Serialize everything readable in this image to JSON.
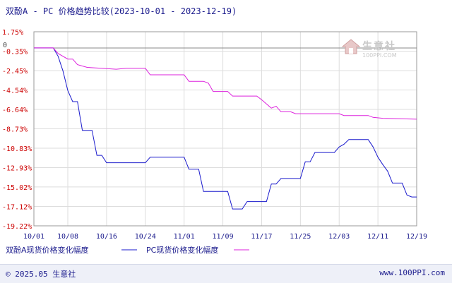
{
  "title": "双酚A - PC 价格趋势比较(2023-10-01 - 2023-12-19)",
  "watermark": {
    "name": "生意社",
    "url": "100PPI.COM"
  },
  "footer": {
    "copyright": "© 2025.05 生意社",
    "site": "www.100PPI.com"
  },
  "colors": {
    "bpa": "#1a1acc",
    "pc": "#dd22dd",
    "axis": "#999999",
    "grid": "#dddddd",
    "ytick": "#cc0000"
  },
  "chart_data": {
    "type": "line",
    "title": "双酚A - PC 价格趋势比较(2023-10-01 - 2023-12-19)",
    "y_unit": "%",
    "ylim": [
      -19.22,
      1.75
    ],
    "y_ticks": [
      "1.75%",
      "-0.35%",
      "-2.45%",
      "-4.54%",
      "-6.64%",
      "-8.73%",
      "-10.83%",
      "-12.93%",
      "-15.02%",
      "-17.12%",
      "-19.22%"
    ],
    "y_tick_values": [
      1.75,
      -0.35,
      -2.45,
      -4.54,
      -6.64,
      -8.73,
      -10.83,
      -12.93,
      -15.02,
      -17.12,
      -19.22
    ],
    "zero_label": "0",
    "x_range": [
      "2023-10-01",
      "2023-12-19"
    ],
    "x_ticks": [
      "10/01",
      "10/08",
      "10/16",
      "10/24",
      "11/01",
      "11/09",
      "11/17",
      "11/25",
      "12/03",
      "12/11",
      "12/19"
    ],
    "x_tick_dates": [
      "2023-10-01",
      "2023-10-08",
      "2023-10-16",
      "2023-10-24",
      "2023-11-01",
      "2023-11-09",
      "2023-11-17",
      "2023-11-25",
      "2023-12-03",
      "2023-12-11",
      "2023-12-19"
    ],
    "grid": true,
    "legend_position": "bottom-left",
    "series": [
      {
        "name": "双酚A现货价格变化幅度",
        "color": "#1a1acc",
        "points": [
          [
            "2023-10-01",
            0.0
          ],
          [
            "2023-10-05",
            0.0
          ],
          [
            "2023-10-06",
            -0.9
          ],
          [
            "2023-10-07",
            -2.5
          ],
          [
            "2023-10-08",
            -4.6
          ],
          [
            "2023-10-09",
            -5.8
          ],
          [
            "2023-10-10",
            -5.8
          ],
          [
            "2023-10-11",
            -8.9
          ],
          [
            "2023-10-12",
            -8.9
          ],
          [
            "2023-10-13",
            -8.9
          ],
          [
            "2023-10-14",
            -11.6
          ],
          [
            "2023-10-15",
            -11.6
          ],
          [
            "2023-10-16",
            -12.4
          ],
          [
            "2023-10-23",
            -12.4
          ],
          [
            "2023-10-24",
            -12.4
          ],
          [
            "2023-10-25",
            -11.8
          ],
          [
            "2023-11-01",
            -11.8
          ],
          [
            "2023-11-02",
            -13.1
          ],
          [
            "2023-11-04",
            -13.1
          ],
          [
            "2023-11-05",
            -15.5
          ],
          [
            "2023-11-09",
            -15.5
          ],
          [
            "2023-11-10",
            -15.5
          ],
          [
            "2023-11-11",
            -17.4
          ],
          [
            "2023-11-13",
            -17.4
          ],
          [
            "2023-11-14",
            -16.6
          ],
          [
            "2023-11-17",
            -16.6
          ],
          [
            "2023-11-18",
            -16.6
          ],
          [
            "2023-11-19",
            -14.7
          ],
          [
            "2023-11-20",
            -14.7
          ],
          [
            "2023-11-21",
            -14.1
          ],
          [
            "2023-11-24",
            -14.1
          ],
          [
            "2023-11-25",
            -14.1
          ],
          [
            "2023-11-26",
            -12.3
          ],
          [
            "2023-11-27",
            -12.3
          ],
          [
            "2023-11-28",
            -11.3
          ],
          [
            "2023-12-02",
            -11.3
          ],
          [
            "2023-12-03",
            -10.7
          ],
          [
            "2023-12-04",
            -10.4
          ],
          [
            "2023-12-05",
            -9.9
          ],
          [
            "2023-12-09",
            -9.9
          ],
          [
            "2023-12-10",
            -10.7
          ],
          [
            "2023-12-11",
            -11.8
          ],
          [
            "2023-12-12",
            -12.6
          ],
          [
            "2023-12-13",
            -13.3
          ],
          [
            "2023-12-14",
            -14.6
          ],
          [
            "2023-12-16",
            -14.6
          ],
          [
            "2023-12-17",
            -15.9
          ],
          [
            "2023-12-18",
            -16.1
          ],
          [
            "2023-12-19",
            -16.1
          ]
        ]
      },
      {
        "name": "PC现货价格变化幅度",
        "color": "#dd22dd",
        "points": [
          [
            "2023-10-01",
            0.0
          ],
          [
            "2023-10-05",
            0.0
          ],
          [
            "2023-10-06",
            -0.6
          ],
          [
            "2023-10-08",
            -1.2
          ],
          [
            "2023-10-09",
            -1.2
          ],
          [
            "2023-10-10",
            -1.8
          ],
          [
            "2023-10-12",
            -2.1
          ],
          [
            "2023-10-15",
            -2.2
          ],
          [
            "2023-10-18",
            -2.3
          ],
          [
            "2023-10-20",
            -2.2
          ],
          [
            "2023-10-24",
            -2.2
          ],
          [
            "2023-10-25",
            -2.9
          ],
          [
            "2023-10-31",
            -2.9
          ],
          [
            "2023-11-01",
            -2.9
          ],
          [
            "2023-11-02",
            -3.6
          ],
          [
            "2023-11-05",
            -3.6
          ],
          [
            "2023-11-06",
            -3.8
          ],
          [
            "2023-11-07",
            -4.7
          ],
          [
            "2023-11-10",
            -4.7
          ],
          [
            "2023-11-11",
            -5.2
          ],
          [
            "2023-11-16",
            -5.2
          ],
          [
            "2023-11-17",
            -5.6
          ],
          [
            "2023-11-19",
            -6.5
          ],
          [
            "2023-11-20",
            -6.3
          ],
          [
            "2023-11-21",
            -6.9
          ],
          [
            "2023-11-23",
            -6.9
          ],
          [
            "2023-11-24",
            -7.1
          ],
          [
            "2023-12-03",
            -7.1
          ],
          [
            "2023-12-04",
            -7.3
          ],
          [
            "2023-12-09",
            -7.3
          ],
          [
            "2023-12-10",
            -7.5
          ],
          [
            "2023-12-12",
            -7.6
          ],
          [
            "2023-12-19",
            -7.7
          ]
        ]
      }
    ]
  }
}
